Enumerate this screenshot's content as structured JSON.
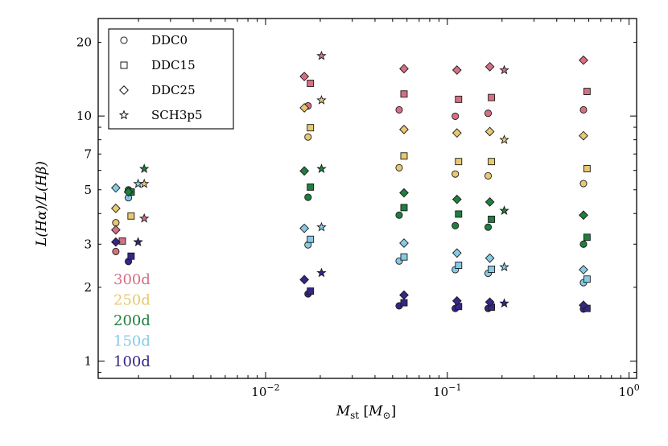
{
  "chart_data": {
    "type": "scatter",
    "title": "",
    "xlabel": "M_st [M_⊙]",
    "xlabel_main": "M",
    "xlabel_sub": "st",
    "xlabel_unit_pre": " [",
    "xlabel_unit_var": "M",
    "xlabel_unit_sub": "⊙",
    "xlabel_unit_post": "]",
    "ylabel": "L(Hα)/L(Hβ)",
    "xscale": "log",
    "yscale": "log",
    "xlim": [
      0.0012,
      1.1
    ],
    "ylim": [
      0.85,
      25
    ],
    "x_ticks": [
      {
        "value": 0.01,
        "base": "10",
        "exp": "−2"
      },
      {
        "value": 0.1,
        "base": "10",
        "exp": "−1"
      },
      {
        "value": 1,
        "base": "10",
        "exp": "0"
      }
    ],
    "y_ticks": [
      {
        "value": 1,
        "label": "1"
      },
      {
        "value": 2,
        "label": "2"
      },
      {
        "value": 3,
        "label": "3"
      },
      {
        "value": 5,
        "label": "5"
      },
      {
        "value": 7,
        "label": "7"
      },
      {
        "value": 10,
        "label": "10"
      },
      {
        "value": 20,
        "label": "20"
      }
    ],
    "legend_position": "top-left",
    "legend": [
      {
        "model": "DDC0",
        "marker": "circle"
      },
      {
        "model": "DDC15",
        "marker": "square"
      },
      {
        "model": "DDC25",
        "marker": "diamond"
      },
      {
        "model": "SCH3p5",
        "marker": "star"
      }
    ],
    "epochs": [
      {
        "label": "300d",
        "color": "#d66f84"
      },
      {
        "label": "250d",
        "color": "#e8c870"
      },
      {
        "label": "200d",
        "color": "#1f7f3f"
      },
      {
        "label": "150d",
        "color": "#86cbe6"
      },
      {
        "label": "100d",
        "color": "#332788"
      }
    ],
    "series": [
      {
        "name": "DDC0 100d",
        "model": "DDC0",
        "epoch": "100d",
        "marker": "circle",
        "color": "#332788",
        "x": [
          0.00176,
          0.01713,
          0.05433,
          0.1106,
          0.1677,
          0.5612
        ],
        "y": [
          2.55,
          1.88,
          1.68,
          1.64,
          1.64,
          1.63
        ]
      },
      {
        "name": "DDC0 150d",
        "model": "DDC0",
        "epoch": "150d",
        "marker": "circle",
        "color": "#86cbe6",
        "x": [
          0.00176,
          0.01713,
          0.05433,
          0.1106,
          0.1677,
          0.5612
        ],
        "y": [
          4.64,
          2.98,
          2.56,
          2.36,
          2.28,
          2.09
        ]
      },
      {
        "name": "DDC0 200d",
        "model": "DDC0",
        "epoch": "200d",
        "marker": "circle",
        "color": "#1f7f3f",
        "x": [
          0.00176,
          0.01713,
          0.05433,
          0.1106,
          0.1677,
          0.5612
        ],
        "y": [
          5.0,
          4.66,
          3.94,
          3.57,
          3.52,
          3.0
        ]
      },
      {
        "name": "DDC0 250d",
        "model": "DDC0",
        "epoch": "250d",
        "marker": "circle",
        "color": "#e8c870",
        "x": [
          0.0015,
          0.01713,
          0.05433,
          0.1106,
          0.1677,
          0.5612
        ],
        "y": [
          3.67,
          8.21,
          6.15,
          5.8,
          5.7,
          5.3
        ]
      },
      {
        "name": "DDC0 300d",
        "model": "DDC0",
        "epoch": "300d",
        "marker": "circle",
        "color": "#d66f84",
        "x": [
          0.0015,
          0.01713,
          0.05433,
          0.1106,
          0.1677,
          0.5612
        ],
        "y": [
          2.8,
          11.0,
          10.6,
          9.98,
          10.26,
          10.6
        ]
      },
      {
        "name": "DDC15 100d",
        "model": "DDC15",
        "epoch": "100d",
        "marker": "square",
        "color": "#332788",
        "x": [
          0.00182,
          0.01765,
          0.05776,
          0.1153,
          0.1748,
          0.5867
        ],
        "y": [
          2.68,
          1.93,
          1.73,
          1.67,
          1.66,
          1.64
        ]
      },
      {
        "name": "DDC15 150d",
        "model": "DDC15",
        "epoch": "150d",
        "marker": "square",
        "color": "#86cbe6",
        "x": [
          0.00182,
          0.01765,
          0.05776,
          0.1153,
          0.1748,
          0.5867
        ],
        "y": [
          4.9,
          3.14,
          2.66,
          2.46,
          2.37,
          2.16
        ]
      },
      {
        "name": "DDC15 200d",
        "model": "DDC15",
        "epoch": "200d",
        "marker": "square",
        "color": "#1f7f3f",
        "x": [
          0.00182,
          0.01765,
          0.05776,
          0.1153,
          0.1748,
          0.5867
        ],
        "y": [
          4.9,
          5.13,
          4.23,
          3.98,
          3.79,
          3.2
        ]
      },
      {
        "name": "DDC15 250d",
        "model": "DDC15",
        "epoch": "250d",
        "marker": "square",
        "color": "#e8c870",
        "x": [
          0.00182,
          0.01765,
          0.05776,
          0.1153,
          0.1748,
          0.5867
        ],
        "y": [
          3.91,
          8.96,
          6.87,
          6.52,
          6.52,
          6.1
        ]
      },
      {
        "name": "DDC15 300d",
        "model": "DDC15",
        "epoch": "300d",
        "marker": "square",
        "color": "#d66f84",
        "x": [
          0.00163,
          0.01765,
          0.05776,
          0.1153,
          0.1748,
          0.5867
        ],
        "y": [
          3.09,
          13.6,
          12.3,
          11.7,
          11.9,
          12.6
        ]
      },
      {
        "name": "DDC25 100d",
        "model": "DDC25",
        "epoch": "100d",
        "marker": "diamond",
        "color": "#332788",
        "x": [
          0.0015,
          0.01634,
          0.05776,
          0.113,
          0.1713,
          0.5612
        ],
        "y": [
          3.06,
          2.15,
          1.86,
          1.76,
          1.74,
          1.69
        ]
      },
      {
        "name": "DDC25 150d",
        "model": "DDC25",
        "epoch": "150d",
        "marker": "diamond",
        "color": "#86cbe6",
        "x": [
          0.0015,
          0.01634,
          0.05776,
          0.113,
          0.1713,
          0.5612
        ],
        "y": [
          5.09,
          3.48,
          3.03,
          2.76,
          2.63,
          2.36
        ]
      },
      {
        "name": "DDC25 200d",
        "model": "DDC25",
        "epoch": "200d",
        "marker": "diamond",
        "color": "#1f7f3f",
        "x": [
          0.00176,
          0.01634,
          0.05776,
          0.113,
          0.1713,
          0.5612
        ],
        "y": [
          4.9,
          5.97,
          4.86,
          4.57,
          4.46,
          3.94
        ]
      },
      {
        "name": "DDC25 250d",
        "model": "DDC25",
        "epoch": "250d",
        "marker": "diamond",
        "color": "#e8c870",
        "x": [
          0.0015,
          0.01634,
          0.05776,
          0.113,
          0.1713,
          0.5612
        ],
        "y": [
          4.2,
          10.8,
          8.81,
          8.53,
          8.64,
          8.31
        ]
      },
      {
        "name": "DDC25 300d",
        "model": "DDC25",
        "epoch": "300d",
        "marker": "diamond",
        "color": "#d66f84",
        "x": [
          0.0015,
          0.01634,
          0.05776,
          0.113,
          0.1713,
          0.5612
        ],
        "y": [
          3.43,
          14.5,
          15.6,
          15.4,
          15.9,
          16.9
        ]
      },
      {
        "name": "SCH3p5 100d",
        "model": "SCH3p5",
        "epoch": "100d",
        "marker": "star",
        "color": "#332788",
        "x": [
          0.00199,
          0.02031,
          0.2057
        ],
        "y": [
          3.06,
          2.29,
          1.72
        ]
      },
      {
        "name": "SCH3p5 150d",
        "model": "SCH3p5",
        "epoch": "150d",
        "marker": "star",
        "color": "#86cbe6",
        "x": [
          0.00199,
          0.02031,
          0.2057
        ],
        "y": [
          5.29,
          3.52,
          2.42
        ]
      },
      {
        "name": "SCH3p5 200d",
        "model": "SCH3p5",
        "epoch": "200d",
        "marker": "star",
        "color": "#1f7f3f",
        "x": [
          0.00215,
          0.02031,
          0.2057
        ],
        "y": [
          6.09,
          6.09,
          4.11
        ]
      },
      {
        "name": "SCH3p5 250d",
        "model": "SCH3p5",
        "epoch": "250d",
        "marker": "star",
        "color": "#e8c870",
        "x": [
          0.00215,
          0.02031,
          0.2057
        ],
        "y": [
          5.29,
          11.6,
          8.0
        ]
      },
      {
        "name": "SCH3p5 300d",
        "model": "SCH3p5",
        "epoch": "300d",
        "marker": "star",
        "color": "#d66f84",
        "x": [
          0.00215,
          0.02031,
          0.2057
        ],
        "y": [
          3.82,
          17.6,
          15.4
        ]
      }
    ]
  }
}
